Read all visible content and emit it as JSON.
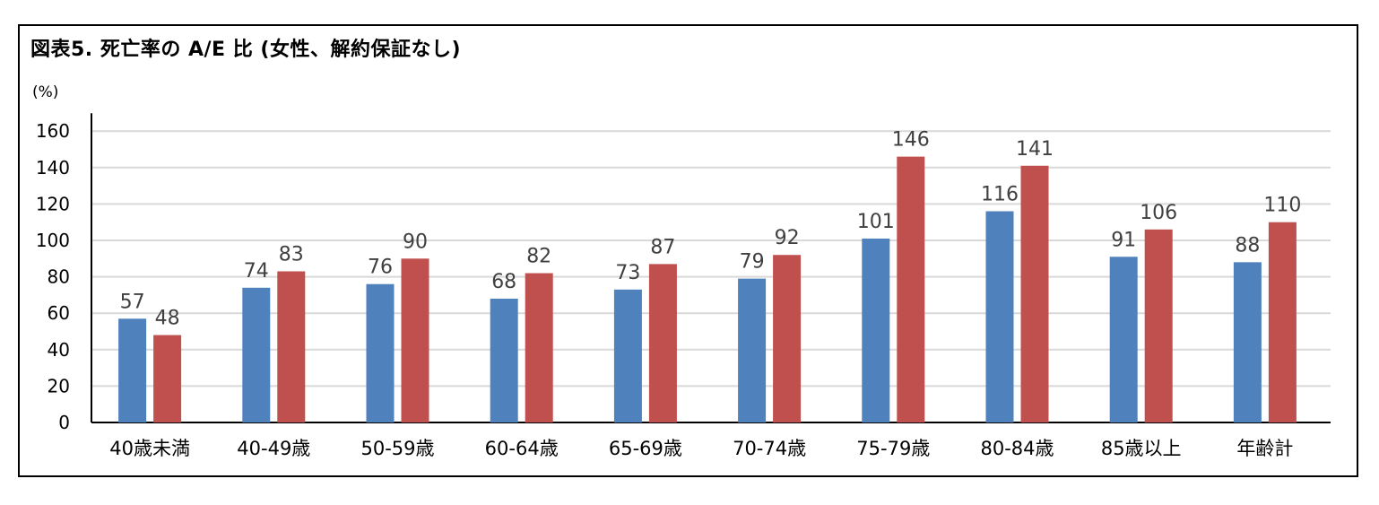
{
  "chart_data": {
    "type": "bar",
    "title": "図表5. 死亡率の A/E 比 (女性、解約保証なし)",
    "unit_label": "(%)",
    "categories": [
      "40歳未満",
      "40-49歳",
      "50-59歳",
      "60-64歳",
      "65-69歳",
      "70-74歳",
      "75-79歳",
      "80-84歳",
      "85歳以上",
      "年齢計"
    ],
    "series": [
      {
        "values": [
          57,
          74,
          76,
          68,
          73,
          79,
          101,
          116,
          91,
          88
        ],
        "color": "#4f81bd"
      },
      {
        "values": [
          48,
          83,
          90,
          82,
          87,
          92,
          146,
          141,
          106,
          110
        ],
        "color": "#c0504d"
      }
    ],
    "yticks": [
      0,
      20,
      40,
      60,
      80,
      100,
      120,
      140,
      160
    ],
    "ylim": [
      0,
      170
    ],
    "grid": true,
    "legend": "none"
  }
}
